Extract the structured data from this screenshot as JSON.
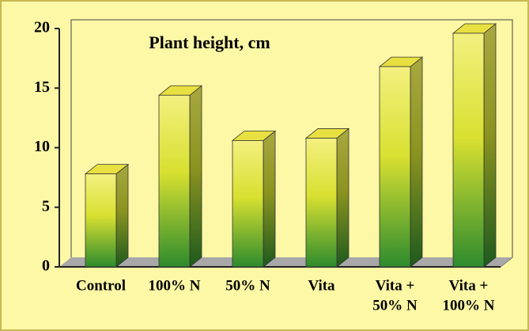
{
  "chart_data": {
    "type": "bar3d",
    "title": "Plant height, cm",
    "categories": [
      [
        "Control"
      ],
      [
        "100% N"
      ],
      [
        "50% N"
      ],
      [
        "Vita"
      ],
      [
        "Vita +",
        "50% N"
      ],
      [
        "Vita +",
        "100% N"
      ]
    ],
    "values": [
      7.8,
      14.4,
      10.6,
      10.8,
      16.8,
      19.6
    ],
    "ylim": [
      0,
      20
    ],
    "yticks": [
      0,
      5,
      10,
      15,
      20
    ]
  }
}
